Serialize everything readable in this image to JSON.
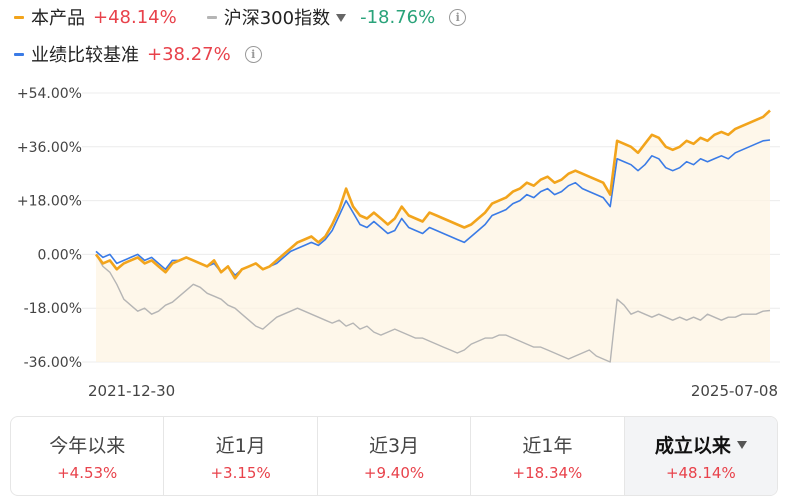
{
  "legend": {
    "product": {
      "name": "本产品",
      "value": "+48.14%",
      "color": "#f2a41c"
    },
    "index": {
      "name": "沪深300指数",
      "value": "-18.76%",
      "color": "#b5b5b5"
    },
    "benchmark": {
      "name": "业绩比较基准",
      "value": "+38.27%",
      "color": "#3a7be6"
    },
    "info_icon": "info-circle-icon",
    "dropdown_icon": "caret-down-icon"
  },
  "chart_data": {
    "type": "line",
    "x_start": "2021-12-30",
    "x_end": "2025-07-08",
    "ylim": [
      -36,
      54
    ],
    "yticks": [
      "+54.00%",
      "+36.00%",
      "+18.00%",
      "0.00%",
      "-18.00%",
      "-36.00%"
    ],
    "ytick_values": [
      54,
      36,
      18,
      0,
      -18,
      -36
    ],
    "grid": true,
    "area_fill_series": "本产品",
    "series": [
      {
        "name": "本产品",
        "color": "#f2a41c",
        "values": [
          0,
          -3,
          -2,
          -5,
          -3,
          -2,
          -1,
          -3,
          -2,
          -4,
          -6,
          -3,
          -2,
          -1,
          -2,
          -3,
          -4,
          -2,
          -6,
          -4,
          -8,
          -5,
          -4,
          -3,
          -5,
          -4,
          -2,
          0,
          2,
          4,
          5,
          6,
          4,
          6,
          10,
          15,
          22,
          16,
          13,
          12,
          14,
          12,
          10,
          12,
          16,
          13,
          12,
          11,
          14,
          13,
          12,
          11,
          10,
          9,
          10,
          12,
          14,
          17,
          18,
          19,
          21,
          22,
          24,
          23,
          25,
          26,
          24,
          25,
          27,
          28,
          27,
          26,
          25,
          24,
          20,
          38,
          37,
          36,
          34,
          37,
          40,
          39,
          36,
          35,
          36,
          38,
          37,
          39,
          38,
          40,
          41,
          40,
          42,
          43,
          44,
          45,
          46,
          48.14
        ]
      },
      {
        "name": "沪深300指数",
        "color": "#b5b5b5",
        "values": [
          0,
          -4,
          -6,
          -10,
          -15,
          -17,
          -19,
          -18,
          -20,
          -19,
          -17,
          -16,
          -14,
          -12,
          -10,
          -11,
          -13,
          -14,
          -15,
          -17,
          -18,
          -20,
          -22,
          -24,
          -25,
          -23,
          -21,
          -20,
          -19,
          -18,
          -19,
          -20,
          -21,
          -22,
          -23,
          -22,
          -24,
          -23,
          -25,
          -24,
          -26,
          -27,
          -26,
          -25,
          -26,
          -27,
          -28,
          -28,
          -29,
          -30,
          -31,
          -32,
          -33,
          -32,
          -30,
          -29,
          -28,
          -28,
          -27,
          -27,
          -28,
          -29,
          -30,
          -31,
          -31,
          -32,
          -33,
          -34,
          -35,
          -34,
          -33,
          -32,
          -34,
          -35,
          -36,
          -15,
          -17,
          -20,
          -19,
          -20,
          -21,
          -20,
          -21,
          -22,
          -21,
          -22,
          -21,
          -22,
          -20,
          -21,
          -22,
          -21,
          -21,
          -20,
          -20,
          -20,
          -19,
          -18.76
        ]
      },
      {
        "name": "业绩比较基准",
        "color": "#3a7be6",
        "values": [
          1,
          -1,
          0,
          -3,
          -2,
          -1,
          0,
          -2,
          -1,
          -3,
          -5,
          -2,
          -2,
          -1,
          -2,
          -3,
          -4,
          -3,
          -6,
          -4,
          -7,
          -5,
          -4,
          -3,
          -5,
          -4,
          -3,
          -1,
          1,
          2,
          3,
          4,
          3,
          5,
          8,
          13,
          18,
          14,
          10,
          9,
          11,
          9,
          7,
          8,
          12,
          9,
          8,
          7,
          9,
          8,
          7,
          6,
          5,
          4,
          6,
          8,
          10,
          13,
          14,
          15,
          17,
          18,
          20,
          19,
          21,
          22,
          20,
          21,
          23,
          24,
          22,
          21,
          20,
          19,
          16,
          32,
          31,
          30,
          28,
          30,
          33,
          32,
          29,
          28,
          29,
          31,
          30,
          32,
          31,
          32,
          33,
          32,
          34,
          35,
          36,
          37,
          38,
          38.27
        ]
      }
    ]
  },
  "tabs": [
    {
      "label": "今年以来",
      "value": "+4.53%",
      "active": false
    },
    {
      "label": "近1月",
      "value": "+3.15%",
      "active": false
    },
    {
      "label": "近3月",
      "value": "+9.40%",
      "active": false
    },
    {
      "label": "近1年",
      "value": "+18.34%",
      "active": false
    },
    {
      "label": "成立以来",
      "value": "+48.14%",
      "active": true
    }
  ]
}
